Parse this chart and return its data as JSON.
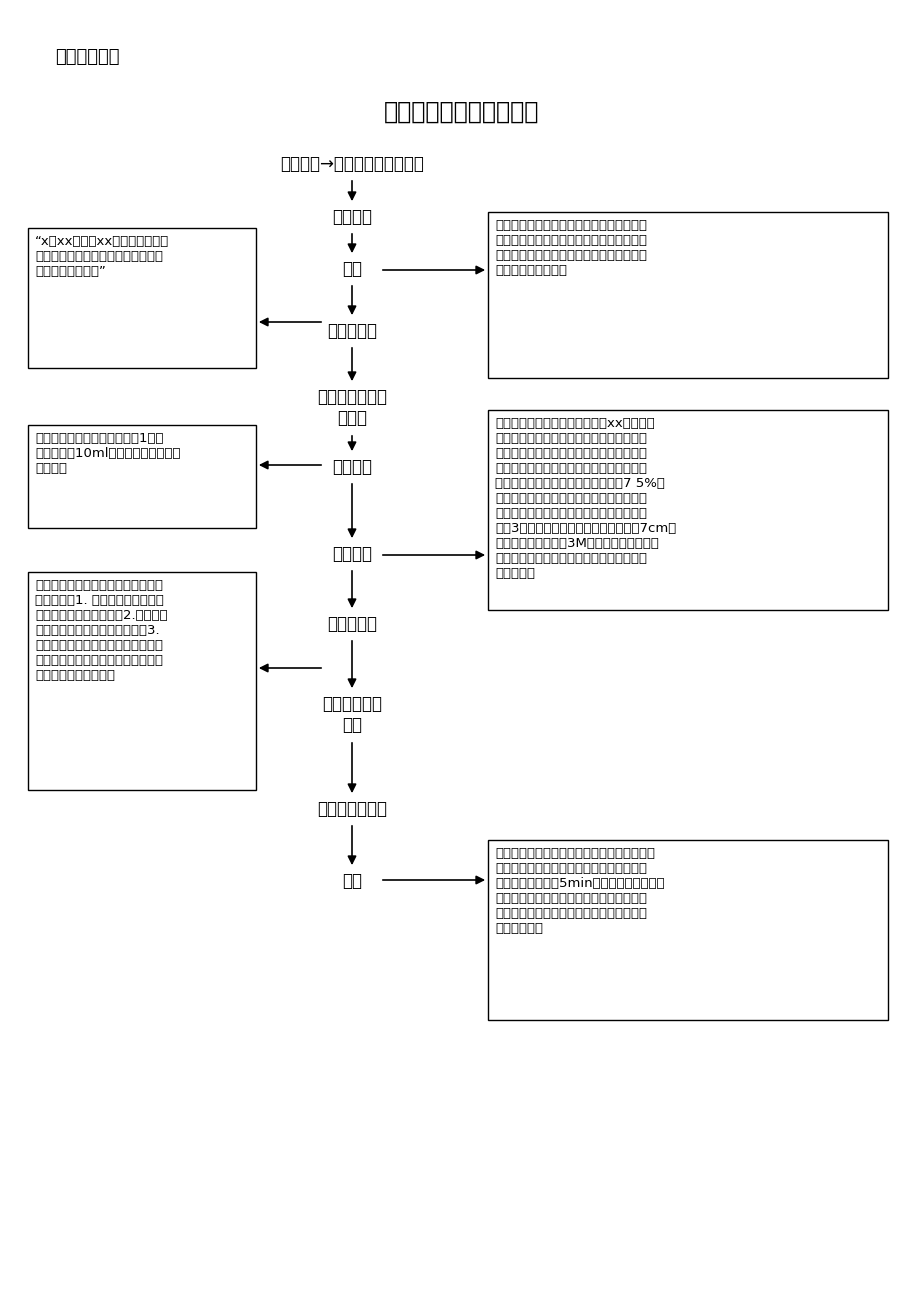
{
  "title_label": "「操作流程」",
  "title_label2": "【操作流程】",
  "title_main": "深静脉置管护理操作流程",
  "bg_color": "#ffffff",
  "text_color": "#000000",
  "flow_steps": [
    "素质要求→服装整洁，仪表端庄",
    "核对医嘱",
    "评估",
    "洗手、汇报",
    "洗手（七步法）\n戴口罩",
    "准备用物",
    "更换敷料",
    "观察、宣教",
    "洗手、脱口罩\n记录",
    "整理用物、洗手",
    "拔管"
  ],
  "left_box1_text": "“x床xx，诊断xx，深静脉置管通\n畅，敷料外观无渗血、渗液，意识清\n楚。能配合操作。”",
  "left_box2_text": "治疗盘、换药包、棉签、手备1副、\n已抽取好的10ml生理盐水、污物桶、\n洗手液。",
  "left_box3_text": "敷料已经给您换好了，有什么不舒服\n吗？宣教：1. 深静脉置管已给您妥\n善固定，不可自行拔除；2.管道不能\n打折或被压住，翻身时需小心；3.\n保持局部清洁干燥，不要擅自撕下贴\n膜，贴膜有卷曲、松动、贴膜下有汗\n液时及时请护士更换。",
  "right_box1_text": "双向核对后解释：遵照医嘱，现在需要为您\n更换深静脉置管敷料和冲管，请问您现在有\n什么不舒服吗？协助翻身检查患者敷料，评\n估深静脉置管情况。",
  "right_box2_text": "携物至病房，双向核对，解释：xx，现在准\n备给您更换敷料，这是为了提供中、长期的\n静脉输液治疗。协助患者平卧位并头偏向一\n侧，暴露深静脉置管，戴手套，沿导管方向\n由下向上揭去敷料。打开换药包，用7 5%酒\n精棉球拭净置管周围的贴膜痕迹，置管处用\n碳伏检球以穿刺点为中心由里向外环形消毒\n皮肤3遍，消毒范围宽于敷料，直径大于7cm，\n待消毒液干后，再赈3M敷料贴膜。脱手套。\n协助病人整理衣物及盖被，询问病人反应。\n整理用物。",
  "right_box3_text": "治疗结束决定拔除导管时，先消毒局部皮肤，\n嘱患者深吸气屏住呼吸后拔出导管，用无菁\n纱布压迫穿刺点剠5min，防止发生血肿并覆\n盖无菁敷料，以保护局部，防止感染，必要\n时剪下导管末端送检。拔管时重视患者有无\n胸痛等主诉。"
}
